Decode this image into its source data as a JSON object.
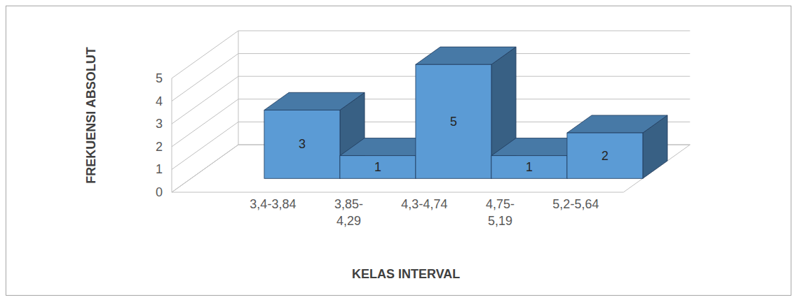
{
  "chart_data": {
    "type": "bar",
    "categories": [
      "3,4-3,84",
      "3,85-4,29",
      "4,3-4,74",
      "4,75-5,19",
      "5,2-5,64"
    ],
    "values": [
      3,
      1,
      5,
      1,
      2
    ],
    "color": "#5b9bd5",
    "ylim": [
      0,
      5
    ],
    "yticks": [
      0,
      1,
      2,
      3,
      4,
      5
    ],
    "grid": true,
    "data_labels": true,
    "x_label": "KELAS INTERVAL",
    "y_label": "FREKUENSI ABSOLUT"
  }
}
